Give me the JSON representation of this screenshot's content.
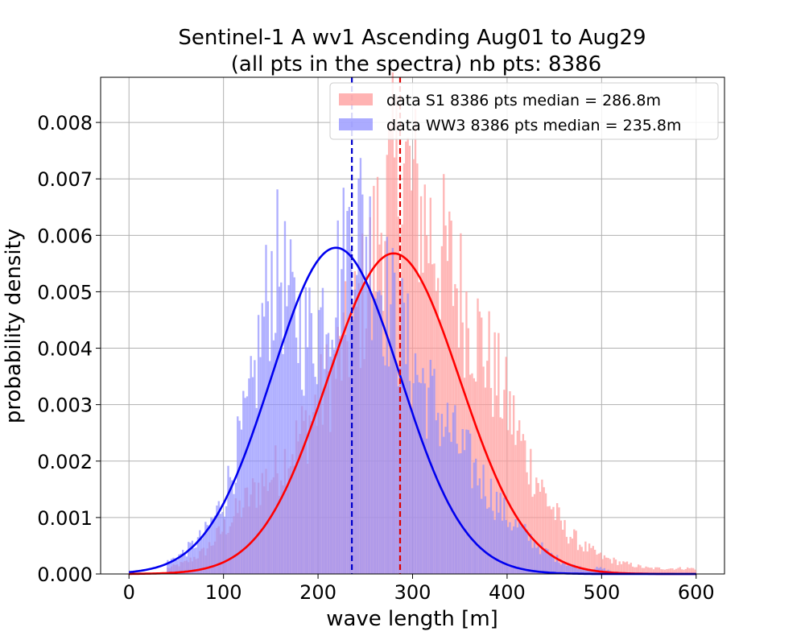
{
  "chart_data": {
    "type": "bar",
    "title": "Sentinel-1 A wv1 Ascending Aug01 to Aug29",
    "subtitle": "(all pts in the spectra) nb pts: 8386",
    "xlabel": "wave length [m]",
    "ylabel": "probability density",
    "xlim": [
      -30,
      630
    ],
    "ylim": [
      0,
      0.0088
    ],
    "xticks": [
      "0",
      "100",
      "200",
      "300",
      "400",
      "500",
      "600"
    ],
    "yticks": [
      "0.000",
      "0.001",
      "0.002",
      "0.003",
      "0.004",
      "0.005",
      "0.006",
      "0.007",
      "0.008"
    ],
    "grid": true,
    "legend_position": "top-right",
    "series": [
      {
        "name": "data S1 8386 pts median = 286.8m",
        "kind": "histogram",
        "color": "#ff9a9a",
        "median": 286.8,
        "fit_mean": 280,
        "fit_sd": 70,
        "fit_peak": 0.00568,
        "fit_color": "#ff0000",
        "bin_width": 2,
        "bins_x": [
          40,
          60,
          80,
          100,
          120,
          140,
          160,
          180,
          200,
          220,
          240,
          250,
          260,
          270,
          280,
          290,
          300,
          310,
          320,
          340,
          360,
          380,
          400,
          420,
          440,
          460,
          480,
          500,
          520,
          550,
          580,
          600
        ],
        "bins_y": [
          0.0001,
          0.0002,
          0.0004,
          0.0008,
          0.0012,
          0.0016,
          0.0019,
          0.0024,
          0.003,
          0.0037,
          0.0045,
          0.005,
          0.0058,
          0.0065,
          0.007,
          0.0072,
          0.0068,
          0.0064,
          0.006,
          0.0054,
          0.0046,
          0.0038,
          0.003,
          0.0021,
          0.0014,
          0.0008,
          0.0005,
          0.0003,
          0.0002,
          0.0001,
          0.0001,
          0.0001
        ]
      },
      {
        "name": "data WW3 8386 pts median = 235.8m",
        "kind": "histogram",
        "color": "#8f8fff",
        "median": 235.8,
        "fit_mean": 219,
        "fit_sd": 68,
        "fit_peak": 0.00578,
        "fit_color": "#0000ee",
        "bin_width": 2,
        "bins_x": [
          40,
          60,
          80,
          100,
          110,
          120,
          130,
          140,
          150,
          160,
          170,
          180,
          190,
          200,
          210,
          220,
          230,
          240,
          250,
          260,
          270,
          280,
          290,
          300,
          320,
          340,
          360,
          380,
          400,
          420,
          440,
          460,
          480,
          500,
          520,
          600
        ],
        "bins_y": [
          0.0002,
          0.0004,
          0.0007,
          0.0013,
          0.0019,
          0.0025,
          0.0031,
          0.0043,
          0.0052,
          0.0054,
          0.0047,
          0.0044,
          0.0042,
          0.0044,
          0.0049,
          0.0052,
          0.0057,
          0.0064,
          0.0061,
          0.0055,
          0.005,
          0.0046,
          0.0042,
          0.0037,
          0.0031,
          0.0025,
          0.002,
          0.0015,
          0.001,
          0.0007,
          0.0004,
          0.0002,
          0.0001,
          0.0001,
          0.0,
          0.0
        ]
      }
    ],
    "medians": [
      {
        "value": 286.8,
        "color": "#dd0000"
      },
      {
        "value": 235.8,
        "color": "#0000cc"
      }
    ]
  }
}
